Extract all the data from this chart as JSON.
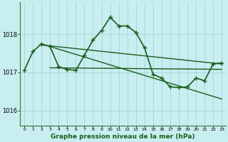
{
  "xlabel": "Graphe pression niveau de la mer (hPa)",
  "background_color": "#c8eef0",
  "grid_color": "#9ed8da",
  "line_color": "#1a5c1a",
  "spine_color": "#2d7a2d",
  "ylim": [
    1015.6,
    1018.85
  ],
  "yticks": [
    1016,
    1017,
    1018
  ],
  "xlim": [
    -0.5,
    23.5
  ],
  "xticks": [
    0,
    1,
    2,
    3,
    4,
    5,
    6,
    7,
    8,
    9,
    10,
    11,
    12,
    13,
    14,
    15,
    16,
    17,
    18,
    19,
    20,
    21,
    22,
    23
  ],
  "main_series": [
    1017.05,
    1017.55,
    1017.75,
    1017.68,
    1017.15,
    1017.08,
    1017.05,
    1017.45,
    1017.85,
    1018.1,
    1018.45,
    1018.22,
    1018.22,
    1018.05,
    1017.65,
    1016.95,
    1016.85,
    1016.62,
    1016.6,
    1016.62,
    1016.85,
    1016.78,
    1017.22,
    1017.25
  ],
  "trend_line1": {
    "x": [
      2,
      23
    ],
    "y": [
      1017.72,
      1017.22
    ]
  },
  "trend_line2": {
    "x": [
      3,
      23
    ],
    "y": [
      1017.12,
      1017.08
    ]
  },
  "trend_line3": {
    "x": [
      3,
      23
    ],
    "y": [
      1017.68,
      1016.3
    ]
  },
  "lw_main": 1.2,
  "lw_trend": 1.0,
  "marker_size": 4
}
